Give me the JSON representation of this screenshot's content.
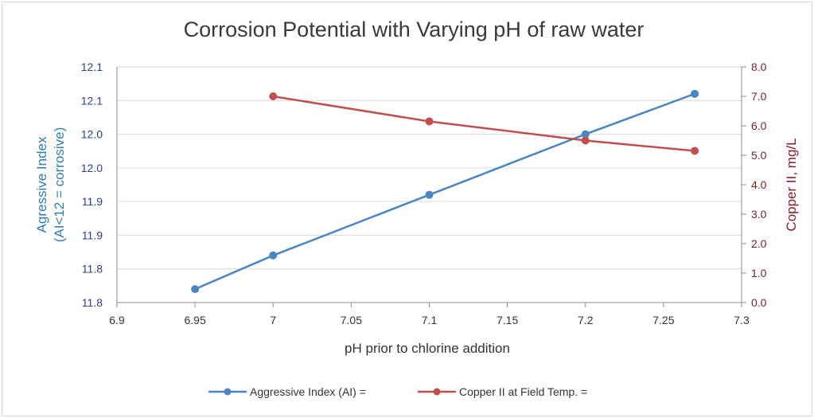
{
  "chart_data": {
    "type": "line",
    "title": "Corrosion Potential with Varying pH of raw water",
    "xlabel": "pH prior to chlorine addition",
    "ylabel_left": [
      "Agressive Index",
      "(AI<12 = corrosive)"
    ],
    "ylabel_right": "Copper II, mg/L",
    "x_ticks": [
      "6.9",
      "6.95",
      "7",
      "7.05",
      "7.1",
      "7.15",
      "7.2",
      "7.25",
      "7.3"
    ],
    "y_left_ticks": [
      "11.8",
      "11.8",
      "11.9",
      "11.9",
      "12.0",
      "12.0",
      "12.1",
      "12.1"
    ],
    "y_right_ticks": [
      "0.0",
      "1.0",
      "2.0",
      "3.0",
      "4.0",
      "5.0",
      "6.0",
      "7.0",
      "8.0"
    ],
    "xlim": [
      6.9,
      7.3
    ],
    "ylim_left": [
      11.75,
      12.1
    ],
    "ylim_right": [
      0,
      8
    ],
    "grid": "horizontal",
    "legend_position": "bottom",
    "series": [
      {
        "name": "Aggressive Index (AI) =",
        "axis": "left",
        "color": "#4a86c5",
        "x": [
          6.95,
          7.0,
          7.1,
          7.2,
          7.27
        ],
        "y": [
          11.77,
          11.82,
          11.91,
          12.0,
          12.06
        ]
      },
      {
        "name": "Copper II at Field Temp. =",
        "axis": "right",
        "color": "#c0504d",
        "x": [
          7.0,
          7.1,
          7.2,
          7.27
        ],
        "y": [
          7.0,
          6.15,
          5.5,
          5.15
        ]
      }
    ]
  }
}
